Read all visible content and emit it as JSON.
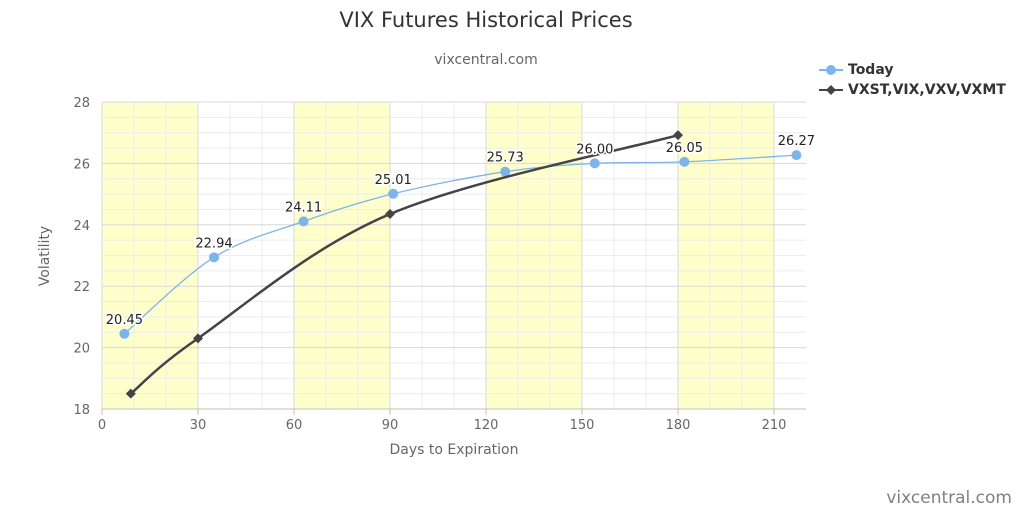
{
  "chart_data": {
    "type": "line",
    "title": "VIX Futures Historical Prices",
    "subtitle": "vixcentral.com",
    "xlabel": "Days to Expiration",
    "ylabel": "Volatility",
    "xlim": [
      0,
      220
    ],
    "ylim": [
      18,
      28
    ],
    "x_ticks": [
      0,
      30,
      60,
      90,
      120,
      150,
      180,
      210
    ],
    "y_ticks": [
      18,
      20,
      22,
      24,
      26,
      28
    ],
    "shaded_bands": [
      [
        0,
        30
      ],
      [
        60,
        90
      ],
      [
        120,
        150
      ],
      [
        180,
        210
      ]
    ],
    "grid": true,
    "legend_position": "top-right",
    "series": [
      {
        "name": "Today",
        "color": "#7cb5ec",
        "marker": "circle",
        "x": [
          7,
          35,
          63,
          91,
          126,
          154,
          182,
          217
        ],
        "y": [
          20.45,
          22.94,
          24.11,
          25.01,
          25.73,
          26.0,
          26.05,
          26.27
        ],
        "labels": [
          "20.45",
          "22.94",
          "24.11",
          "25.01",
          "25.73",
          "26.00",
          "26.05",
          "26.27"
        ]
      },
      {
        "name": "VXST,VIX,VXV,VXMT",
        "color": "#434348",
        "marker": "diamond",
        "x": [
          9,
          30,
          90,
          180
        ],
        "y": [
          18.5,
          20.3,
          24.35,
          26.92
        ]
      }
    ]
  },
  "watermark": "vixcentral.com"
}
